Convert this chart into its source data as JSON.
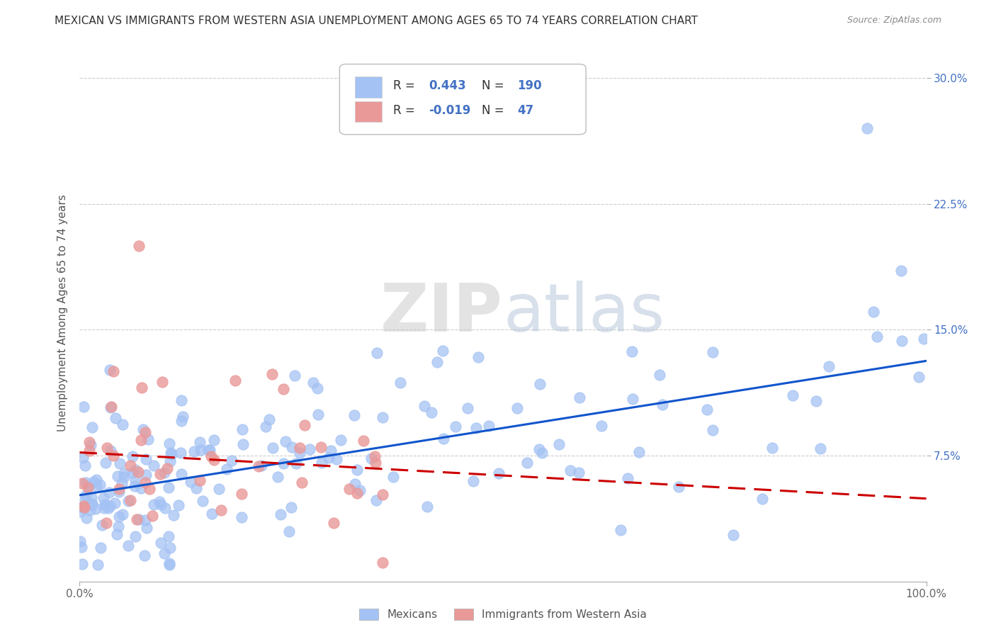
{
  "title": "MEXICAN VS IMMIGRANTS FROM WESTERN ASIA UNEMPLOYMENT AMONG AGES 65 TO 74 YEARS CORRELATION CHART",
  "source": "Source: ZipAtlas.com",
  "ylabel": "Unemployment Among Ages 65 to 74 years",
  "xlim": [
    0.0,
    1.0
  ],
  "ylim": [
    0.0,
    0.32
  ],
  "yticks": [
    0.075,
    0.15,
    0.225,
    0.3
  ],
  "ytick_labels": [
    "7.5%",
    "15.0%",
    "22.5%",
    "30.0%"
  ],
  "xticks": [
    0.0,
    1.0
  ],
  "xtick_labels": [
    "0.0%",
    "100.0%"
  ],
  "blue_R": 0.443,
  "blue_N": 190,
  "pink_R": -0.019,
  "pink_N": 47,
  "blue_color": "#a4c2f4",
  "pink_color": "#ea9999",
  "blue_line_color": "#1155cc",
  "pink_line_color": "#cc0000",
  "legend_label_blue": "Mexicans",
  "legend_label_pink": "Immigrants from Western Asia",
  "watermark_zip": "ZIP",
  "watermark_atlas": "atlas",
  "title_fontsize": 11,
  "axis_label_fontsize": 11,
  "tick_fontsize": 11,
  "background_color": "#ffffff",
  "grid_color": "#cccccc",
  "ytick_color": "#4472c4",
  "xtick_color": "#666666"
}
